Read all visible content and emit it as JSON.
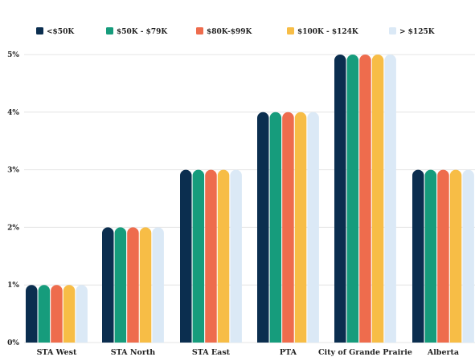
{
  "chart_data": {
    "type": "bar",
    "categories": [
      "STA West",
      "STA North",
      "STA East",
      "PTA",
      "City of Grande Prairie",
      "Alberta"
    ],
    "series": [
      {
        "name": "<$50K",
        "color": "#0b2e4f",
        "values": [
          1,
          2,
          3,
          4,
          5,
          3
        ]
      },
      {
        "name": "$50K - $79K",
        "color": "#169c7c",
        "values": [
          1,
          2,
          3,
          4,
          5,
          3
        ]
      },
      {
        "name": "$80K-$99K",
        "color": "#ee6c4d",
        "values": [
          1,
          2,
          3,
          4,
          5,
          3
        ]
      },
      {
        "name": "$100K - $124K",
        "color": "#f7bd46",
        "values": [
          1,
          2,
          3,
          4,
          5,
          3
        ]
      },
      {
        "name": "> $125K",
        "color": "#dbe9f6",
        "values": [
          1,
          2,
          3,
          4,
          5,
          3
        ]
      }
    ],
    "ylim": [
      0,
      5
    ],
    "y_ticks": [
      "0%",
      "1%",
      "2%",
      "3%",
      "4%",
      "5%"
    ],
    "y_unit": "%",
    "grid": true,
    "legend_position": "top"
  }
}
